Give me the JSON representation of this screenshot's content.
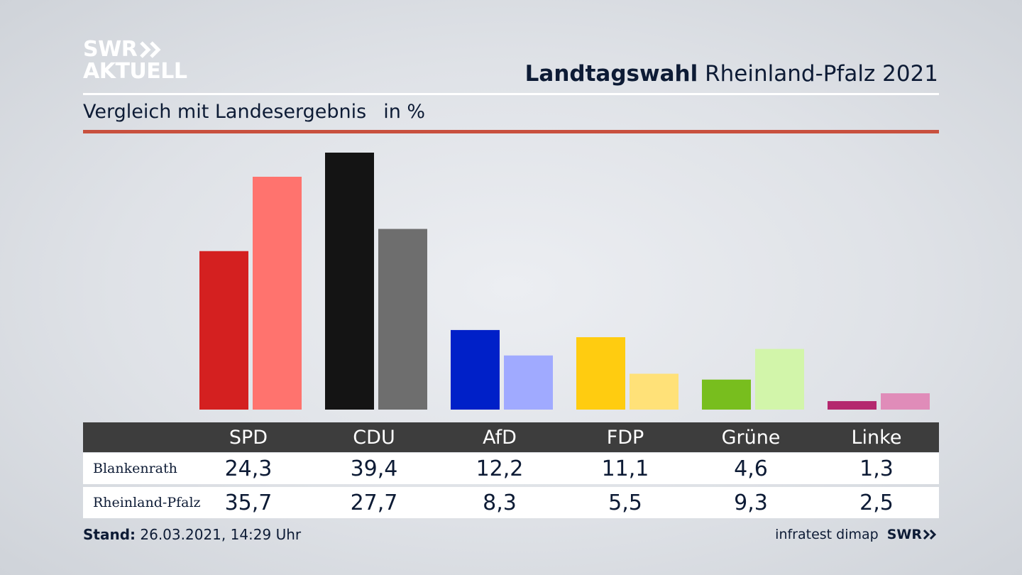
{
  "header": {
    "logo_line1": "SWR",
    "logo_line2": "AKTUELL",
    "title_bold": "Landtagswahl",
    "title_rest": "Rheinland-Pfalz 2021",
    "subtitle": "Vergleich mit Landesergebnis",
    "unit": "in %"
  },
  "colors": {
    "accent_rule": "#c8503e",
    "table_header": "#3d3d3d"
  },
  "chart_data": {
    "type": "bar",
    "categories": [
      "SPD",
      "CDU",
      "AfD",
      "FDP",
      "Grüne",
      "Linke"
    ],
    "series": [
      {
        "name": "Blankenrath",
        "values": [
          24.3,
          39.4,
          12.2,
          11.1,
          4.6,
          1.3
        ],
        "colors": [
          "#d42020",
          "#141414",
          "#0020c8",
          "#ffcc10",
          "#78be1e",
          "#b4286e"
        ]
      },
      {
        "name": "Rheinland-Pfalz",
        "values": [
          35.7,
          27.7,
          8.3,
          5.5,
          9.3,
          2.5
        ],
        "colors": [
          "#ff736e",
          "#6e6e6e",
          "#a0aaff",
          "#ffe178",
          "#d2f5aa",
          "#e08cb9"
        ]
      }
    ],
    "ylim": [
      0,
      39.4
    ],
    "grid": false,
    "legend": "table below chart"
  },
  "table": {
    "headers": [
      "SPD",
      "CDU",
      "AfD",
      "FDP",
      "Grüne",
      "Linke"
    ],
    "rows": [
      {
        "label": "Blankenrath",
        "values": [
          "24,3",
          "39,4",
          "12,2",
          "11,1",
          "4,6",
          "1,3"
        ]
      },
      {
        "label": "Rheinland-Pfalz",
        "values": [
          "35,7",
          "27,7",
          "8,3",
          "5,5",
          "9,3",
          "2,5"
        ]
      }
    ]
  },
  "footer": {
    "stand_label": "Stand:",
    "stand_value": "26.03.2021, 14:29 Uhr",
    "source": "infratest dimap",
    "source_logo": "SWR"
  }
}
